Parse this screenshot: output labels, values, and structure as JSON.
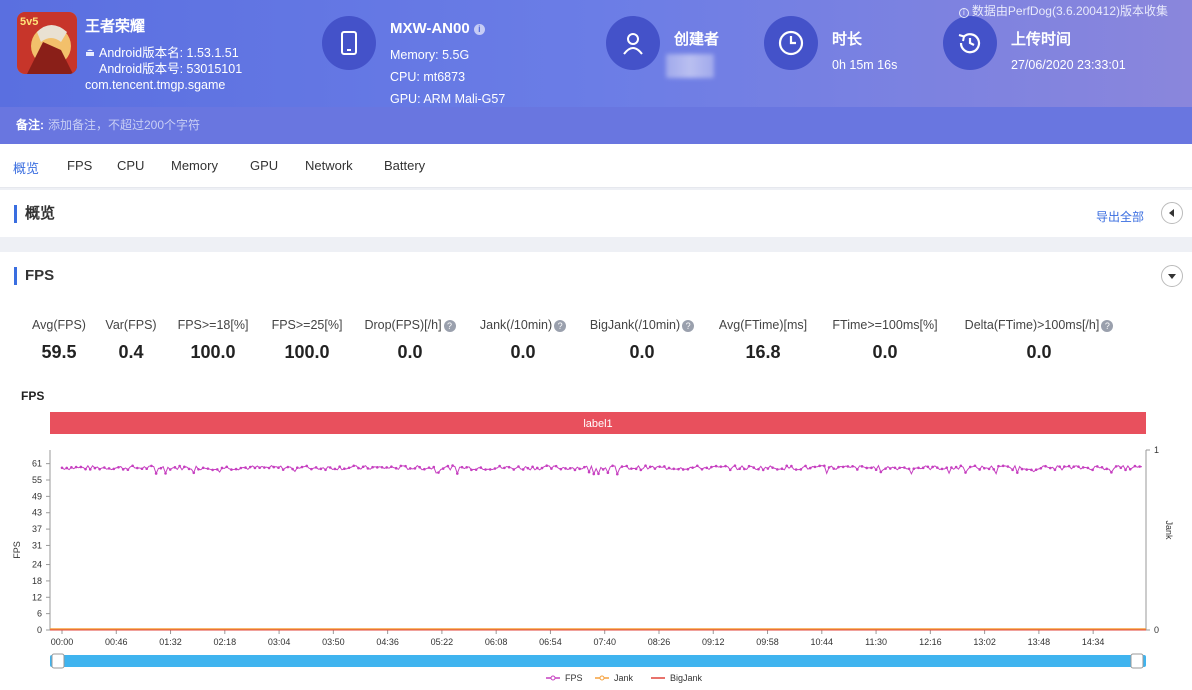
{
  "app": {
    "name": "王者荣耀",
    "version_name": "Android版本名: 1.53.1.51",
    "version_code": "Android版本号: 53015101",
    "package": "com.tencent.tmgp.sgame",
    "icon_text": "5v5"
  },
  "device": {
    "model": "MXW-AN00",
    "memory": "Memory: 5.5G",
    "cpu": "CPU: mt6873",
    "gpu": "GPU: ARM Mali-G57"
  },
  "creator": {
    "label": "创建者"
  },
  "duration": {
    "label": "时长",
    "value": "0h 15m 16s"
  },
  "upload": {
    "label": "上传时间",
    "value": "27/06/2020 23:33:01"
  },
  "source_note": "数据由PerfDog(3.6.200412)版本收集",
  "remark": {
    "label": "备注:",
    "placeholder": "添加备注，不超过200个字符"
  },
  "tabs": [
    "概览",
    "FPS",
    "CPU",
    "Memory",
    "GPU",
    "Network",
    "Battery"
  ],
  "overview": {
    "title": "概览",
    "export": "导出全部"
  },
  "fps_section": {
    "title": "FPS"
  },
  "stats": [
    {
      "label": "Avg(FPS)",
      "value": "59.5",
      "help": false
    },
    {
      "label": "Var(FPS)",
      "value": "0.4",
      "help": false
    },
    {
      "label": "FPS>=18[%]",
      "value": "100.0",
      "help": false
    },
    {
      "label": "FPS>=25[%]",
      "value": "100.0",
      "help": false
    },
    {
      "label": "Drop(FPS)[/h]",
      "value": "0.0",
      "help": true
    },
    {
      "label": "Jank(/10min)",
      "value": "0.0",
      "help": true
    },
    {
      "label": "BigJank(/10min)",
      "value": "0.0",
      "help": true
    },
    {
      "label": "Avg(FTime)[ms]",
      "value": "16.8",
      "help": false
    },
    {
      "label": "FTime>=100ms[%]",
      "value": "0.0",
      "help": false
    },
    {
      "label": "Delta(FTime)>100ms[/h]",
      "value": "0.0",
      "help": true
    }
  ],
  "colors": {
    "fps": "#c63fc0",
    "jank": "#f5a13d",
    "bigjank": "#e0443b",
    "label_band": "#e8505d",
    "slider": "#3fb4ef"
  },
  "chart_data": {
    "type": "line",
    "title": "FPS",
    "label_band": "label1",
    "ylabel_left": "FPS",
    "ylabel_right": "Jank",
    "yticks_left": [
      0,
      6,
      12,
      18,
      24,
      31,
      37,
      43,
      49,
      55,
      61
    ],
    "ylim_left": [
      0,
      66
    ],
    "yticks_right": [
      0,
      1
    ],
    "ylim_right": [
      0,
      1
    ],
    "xticks": [
      "00:00",
      "00:46",
      "01:32",
      "02:18",
      "03:04",
      "03:50",
      "04:36",
      "05:22",
      "06:08",
      "06:54",
      "07:40",
      "08:26",
      "09:12",
      "09:58",
      "10:44",
      "11:30",
      "12:16",
      "13:02",
      "13:48",
      "14:34"
    ],
    "duration_s": 916,
    "series": [
      {
        "name": "FPS",
        "axis": "left",
        "approx_mean": 59.5,
        "approx_min": 57,
        "approx_max": 61
      },
      {
        "name": "Jank",
        "axis": "right",
        "constant": 0
      },
      {
        "name": "BigJank",
        "axis": "right",
        "constant": 0
      }
    ],
    "legend": [
      "FPS",
      "Jank",
      "BigJank"
    ],
    "legend_position": "bottom-center"
  }
}
